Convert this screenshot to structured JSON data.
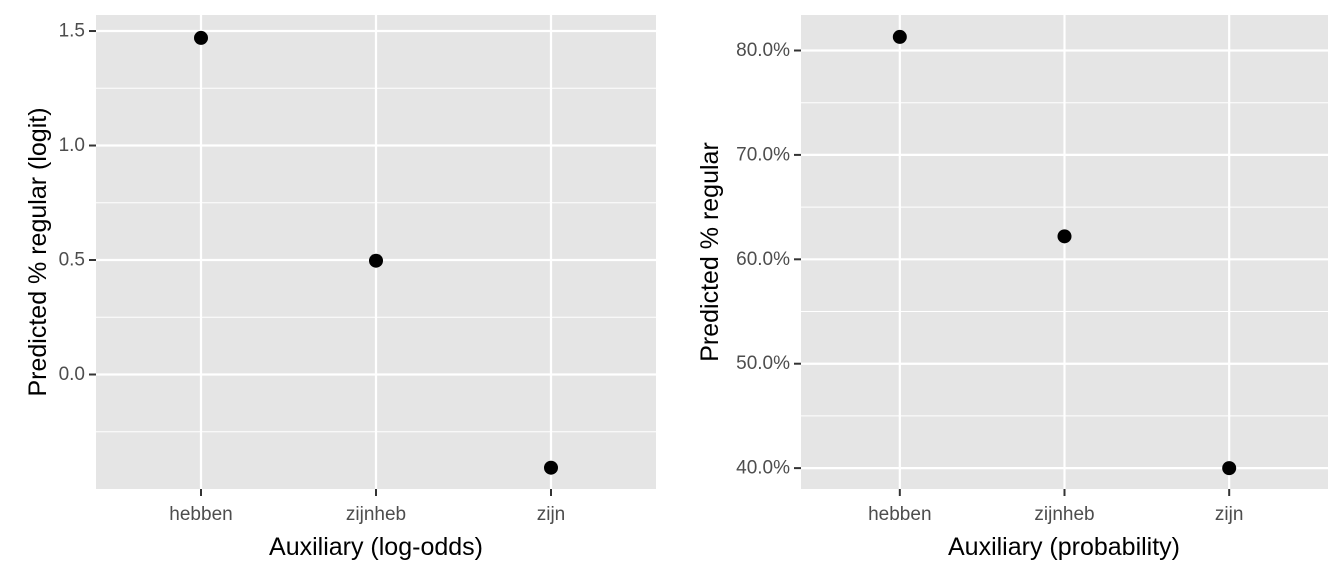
{
  "chart_data": [
    {
      "type": "scatter",
      "title": "",
      "xlabel": "Auxiliary (log-odds)",
      "ylabel": "Predicted % regular (logit)",
      "categories": [
        "hebben",
        "zijnheb",
        "zijn"
      ],
      "values": [
        1.47,
        0.497,
        -0.407
      ],
      "ylim": [
        -0.5,
        1.57
      ],
      "yticks": [
        0.0,
        0.5,
        1.0,
        1.5
      ],
      "ytick_labels": [
        "0.0",
        "0.5",
        "1.0",
        "1.5"
      ],
      "grid": true,
      "legend": "none",
      "background": "#e5e5e5",
      "grid_color": "#ffffff",
      "point_color": "#000000"
    },
    {
      "type": "scatter",
      "title": "",
      "xlabel": "Auxiliary (probability)",
      "ylabel": "Predicted % regular",
      "categories": [
        "hebben",
        "zijnheb",
        "zijn"
      ],
      "values": [
        0.813,
        0.622,
        0.4
      ],
      "ylim": [
        0.38,
        0.834
      ],
      "yticks": [
        0.4,
        0.5,
        0.6,
        0.7,
        0.8
      ],
      "ytick_labels": [
        "40.0%",
        "50.0%",
        "60.0%",
        "70.0%",
        "80.0%"
      ],
      "grid": true,
      "legend": "none",
      "background": "#e5e5e5",
      "grid_color": "#ffffff",
      "point_color": "#000000"
    }
  ]
}
